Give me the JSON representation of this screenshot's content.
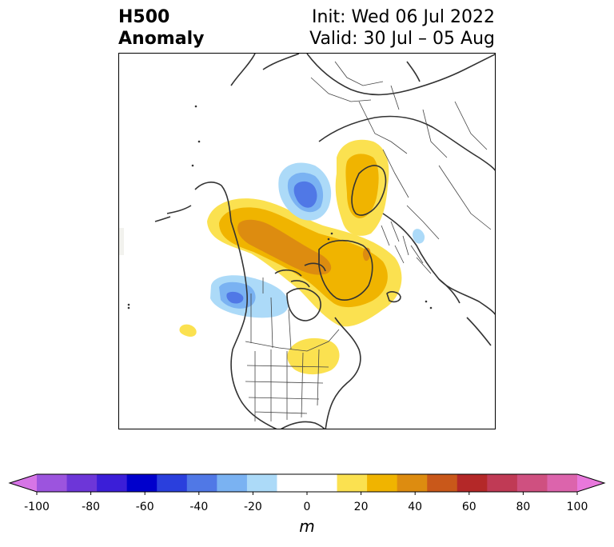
{
  "header": {
    "title_line1": "H500",
    "title_line2": "Anomaly",
    "init_text": "Init: Wed 06 Jul 2022",
    "valid_text": "Valid: 30 Jul – 05 Aug"
  },
  "colorbar": {
    "unit": "m",
    "ticks": [
      "-100",
      "-80",
      "-60",
      "-40",
      "-20",
      "0",
      "20",
      "40",
      "60",
      "80",
      "100"
    ],
    "colors": [
      "#d675e6",
      "#9c54de",
      "#6d36d8",
      "#3b1ed8",
      "#0000cc",
      "#2a3fdd",
      "#5078e6",
      "#7ab2f2",
      "#acdaf8",
      "#ffffff",
      "#ffffff",
      "#fbe150",
      "#f0b400",
      "#dd8c10",
      "#c9581a",
      "#b42828",
      "#c03a55",
      "#cf5080",
      "#dc64ac",
      "#e878dc"
    ]
  },
  "map": {
    "anomaly_colors": {
      "light_yellow": "#fbe150",
      "gold": "#f0b400",
      "orange": "#dd8c10",
      "light_blue": "#acdaf8",
      "mid_blue": "#7ab2f2",
      "blue": "#5078e6",
      "coastline": "#333333"
    }
  }
}
